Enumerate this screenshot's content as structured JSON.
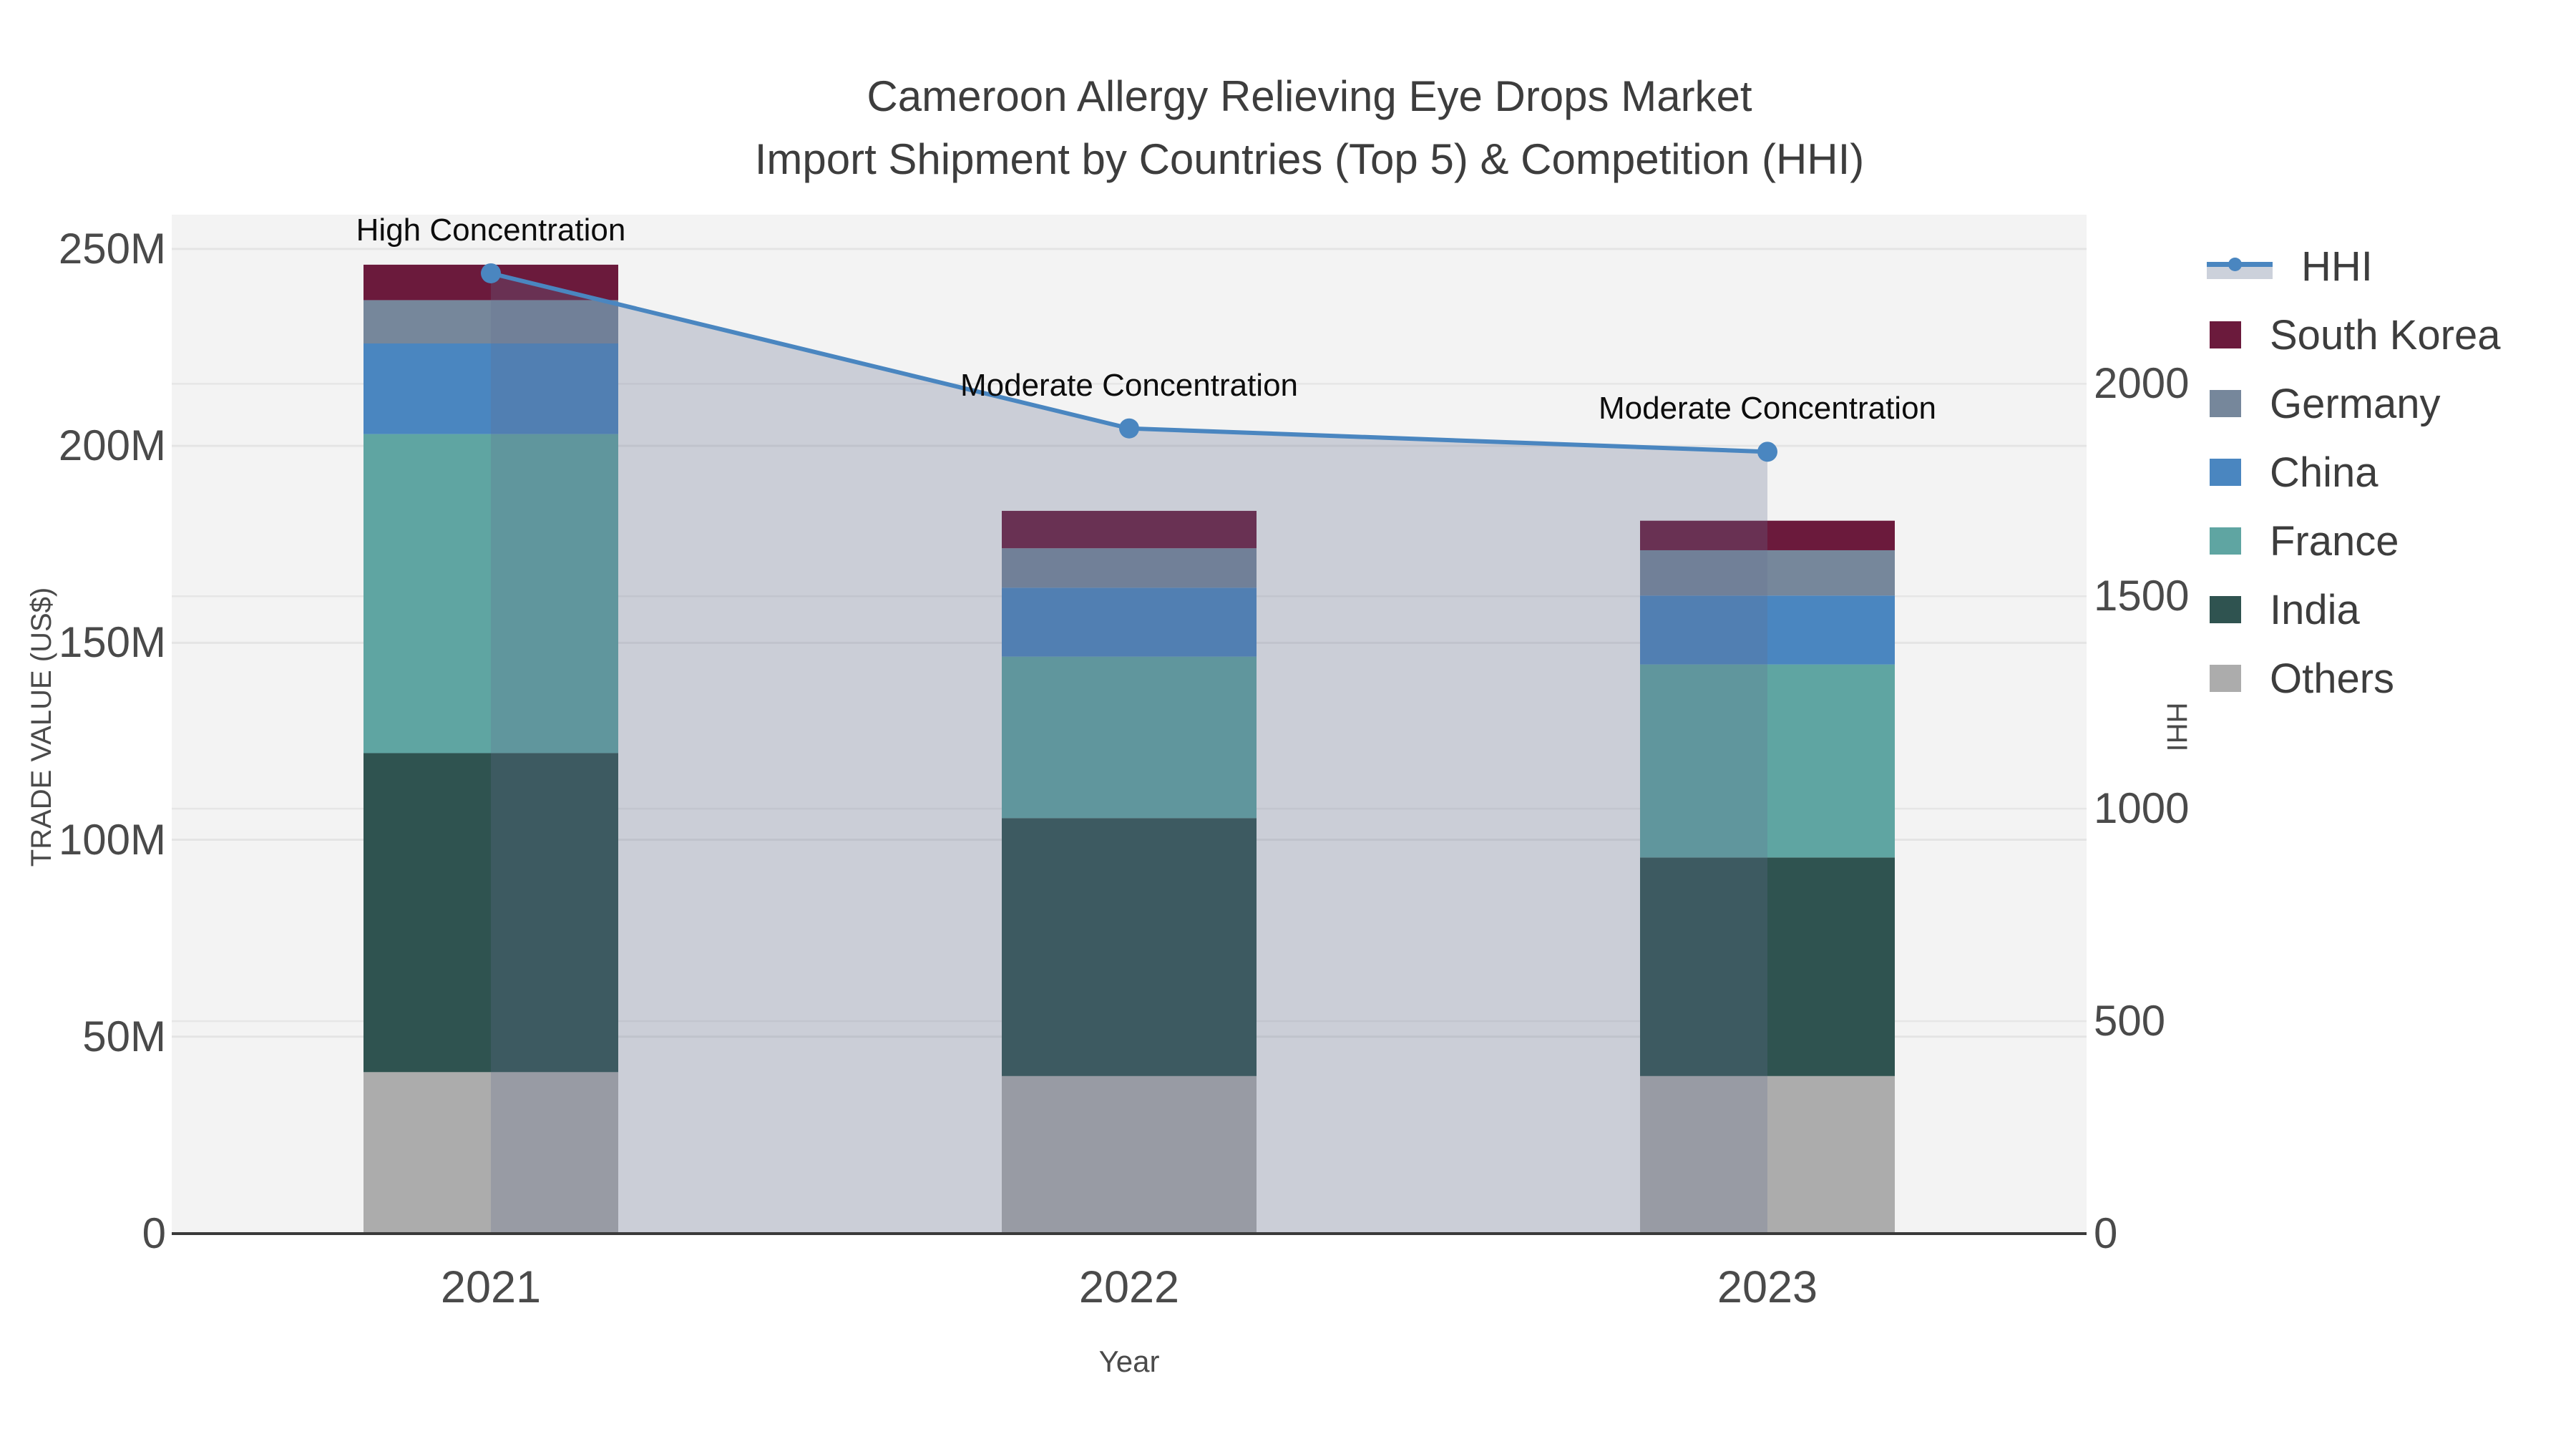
{
  "title": {
    "line1": "Cameroon Allergy Relieving Eye Drops Market",
    "line2": "Import Shipment by Countries (Top 5) & Competition (HHI)"
  },
  "axes": {
    "x": {
      "title": "Year",
      "categories": [
        "2021",
        "2022",
        "2023"
      ]
    },
    "y": {
      "title": "TRADE VALUE (US$)",
      "ticks": [
        {
          "value": 0,
          "label": "0"
        },
        {
          "value": 50,
          "label": "50M"
        },
        {
          "value": 100,
          "label": "100M"
        },
        {
          "value": 150,
          "label": "150M"
        },
        {
          "value": 200,
          "label": "200M"
        },
        {
          "value": 250,
          "label": "250M"
        }
      ]
    },
    "y2": {
      "title": "HHI",
      "ticks": [
        {
          "value": 0,
          "label": "0"
        },
        {
          "value": 500,
          "label": "500"
        },
        {
          "value": 1000,
          "label": "1000"
        },
        {
          "value": 1500,
          "label": "1500"
        },
        {
          "value": 2000,
          "label": "2000"
        }
      ]
    }
  },
  "legend": {
    "items": [
      {
        "label": "HHI",
        "type": "line",
        "color": "#4a86c0"
      },
      {
        "label": "South Korea",
        "type": "swatch",
        "color": "#6b1a3c"
      },
      {
        "label": "Germany",
        "type": "swatch",
        "color": "#76879b"
      },
      {
        "label": "China",
        "type": "swatch",
        "color": "#4a86c0"
      },
      {
        "label": "France",
        "type": "swatch",
        "color": "#5fa5a2"
      },
      {
        "label": "India",
        "type": "swatch",
        "color": "#2f5350"
      },
      {
        "label": "Others",
        "type": "swatch",
        "color": "#acacac"
      }
    ]
  },
  "annotations": [
    {
      "text": "High Concentration",
      "category": "2021"
    },
    {
      "text": "Moderate Concentration",
      "category": "2022"
    },
    {
      "text": "Moderate Concentration",
      "category": "2023"
    }
  ],
  "colors": {
    "background": "#ffffff",
    "plot_bg": "#f3f3f3",
    "grid": "#e4e4e4",
    "axis_line": "#3a3a3a",
    "hhi_line": "#4a86c0",
    "hhi_fill": "rgba(100,113,143,0.28)",
    "tick_text": "#4a4a4a",
    "title_text": "#3d3d3d",
    "annotation_text": "#0d0d0d"
  },
  "chart_data": {
    "type": "combo-stacked-bar-with-line",
    "title": "Cameroon Allergy Relieving Eye Drops Market — Import Shipment by Countries (Top 5) & Competition (HHI)",
    "categories": [
      "2021",
      "2022",
      "2023"
    ],
    "xlabel": "Year",
    "ylabel": "TRADE VALUE (US$)",
    "y2label": "HHI",
    "ylim": [
      0,
      258.7
    ],
    "y2lim": [
      0,
      2398
    ],
    "unit": "M US$ (left axis), HHI index (right axis)",
    "grid": true,
    "legend_position": "right",
    "bar_series": [
      {
        "name": "Others",
        "color": "#acacac",
        "values": [
          41,
          40,
          40
        ]
      },
      {
        "name": "India",
        "color": "#2f5350",
        "values": [
          81,
          65.5,
          55.5
        ]
      },
      {
        "name": "France",
        "color": "#5fa5a2",
        "values": [
          81,
          41,
          49
        ]
      },
      {
        "name": "China",
        "color": "#4a86c0",
        "values": [
          23,
          17.5,
          17.5
        ]
      },
      {
        "name": "Germany",
        "color": "#76879b",
        "values": [
          11,
          10,
          11.5
        ]
      },
      {
        "name": "South Korea",
        "color": "#6b1a3c",
        "values": [
          9,
          9.5,
          7.5
        ]
      }
    ],
    "bar_totals": [
      246,
      183.5,
      181
    ],
    "line_series": {
      "name": "HHI",
      "color": "#4a86c0",
      "axis": "y2",
      "fill": "tozeroy",
      "values": [
        2260,
        1895,
        1840
      ]
    },
    "annotations": [
      "High Concentration",
      "Moderate Concentration",
      "Moderate Concentration"
    ]
  }
}
